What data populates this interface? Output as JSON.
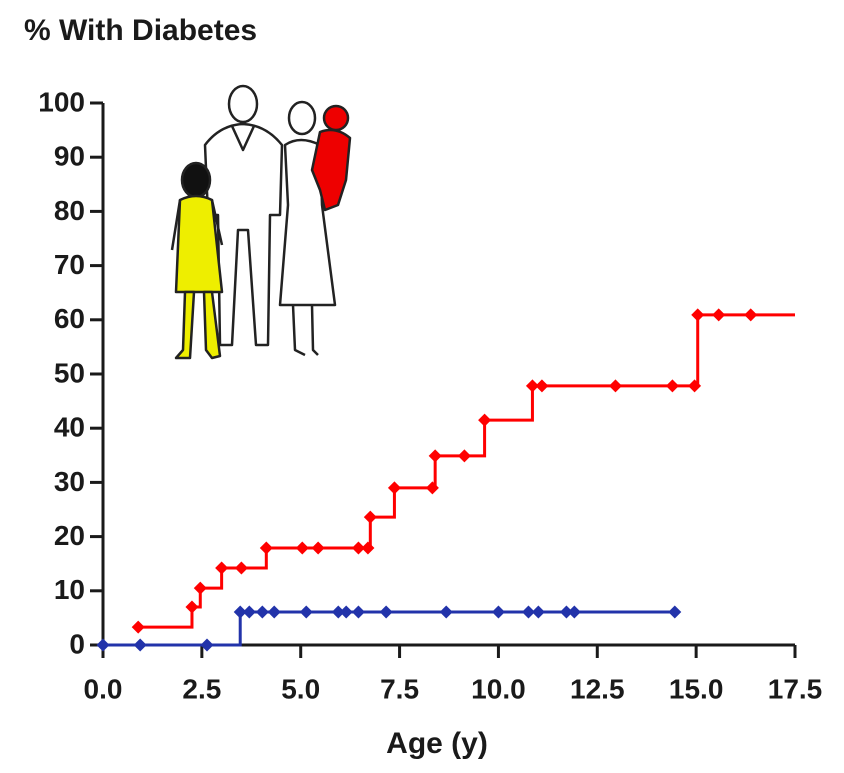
{
  "chart_data": {
    "type": "step",
    "title": "% With Diabetes",
    "x_label": "Age (y)",
    "xlim": [
      0,
      17.5
    ],
    "xticks": [
      {
        "value": 0,
        "label": "0.0"
      },
      {
        "value": 2.5,
        "label": "2.5"
      },
      {
        "value": 5,
        "label": "5.0"
      },
      {
        "value": 7.5,
        "label": "7.5"
      },
      {
        "value": 10,
        "label": "10.0"
      },
      {
        "value": 12.5,
        "label": "12.5"
      },
      {
        "value": 15,
        "label": "15.0"
      },
      {
        "value": 17.5,
        "label": "17.5"
      }
    ],
    "ylim": [
      0,
      100
    ],
    "yticks": [
      0,
      10,
      20,
      30,
      40,
      50,
      60,
      70,
      80,
      90,
      100
    ],
    "series": [
      {
        "color": "#ff0000",
        "extend_to_axis_end": true,
        "x": [
          0.89,
          2.25,
          2.46,
          3.0,
          3.5,
          4.13,
          5.04,
          5.44,
          6.46,
          6.7,
          6.76,
          7.37,
          8.33,
          8.4,
          9.14,
          9.65,
          10.86,
          11.1,
          12.96,
          14.4,
          14.96,
          15.04,
          15.57,
          16.38
        ],
        "values": [
          3.3,
          7.0,
          10.5,
          14.2,
          14.2,
          17.9,
          17.9,
          17.9,
          17.9,
          17.9,
          23.6,
          29.0,
          29.0,
          34.9,
          34.9,
          41.5,
          47.8,
          47.8,
          47.8,
          47.8,
          47.8,
          60.9,
          60.9,
          60.9
        ]
      },
      {
        "color": "#2233aa",
        "extend_to_axis_end": false,
        "x": [
          0,
          0.94,
          2.63,
          3.47,
          3.7,
          4.03,
          4.33,
          5.14,
          5.95,
          6.15,
          6.46,
          7.16,
          8.68,
          10.0,
          10.76,
          11.01,
          11.72,
          11.92,
          14.46
        ],
        "values": [
          0,
          0,
          0,
          6.1,
          6.1,
          6.1,
          6.1,
          6.1,
          6.1,
          6.1,
          6.1,
          6.1,
          6.1,
          6.1,
          6.1,
          6.1,
          6.1,
          6.1,
          6.1
        ]
      }
    ]
  }
}
